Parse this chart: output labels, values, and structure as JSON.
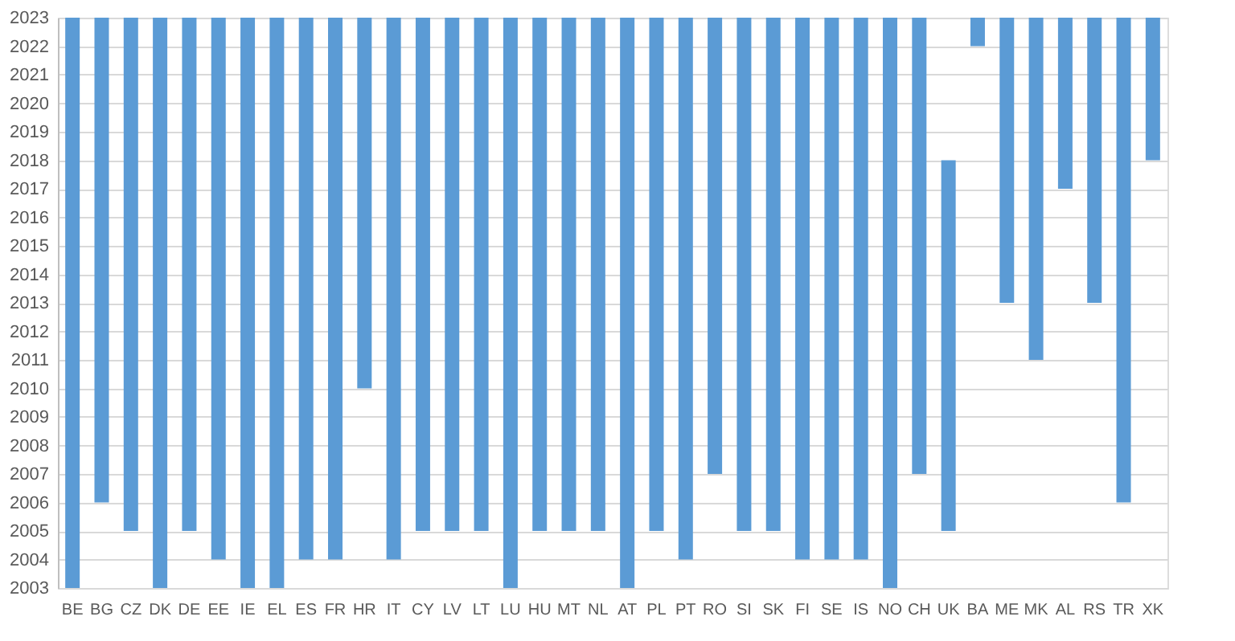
{
  "chart_data": {
    "type": "bar",
    "categories": [
      "BE",
      "BG",
      "CZ",
      "DK",
      "DE",
      "EE",
      "IE",
      "EL",
      "ES",
      "FR",
      "HR",
      "IT",
      "CY",
      "LV",
      "LT",
      "LU",
      "HU",
      "MT",
      "NL",
      "AT",
      "PL",
      "PT",
      "RO",
      "SI",
      "SK",
      "FI",
      "SE",
      "IS",
      "NO",
      "CH",
      "UK",
      "BA",
      "ME",
      "MK",
      "AL",
      "RS",
      "TR",
      "XK"
    ],
    "base": [
      2003,
      2006,
      2005,
      2003,
      2005,
      2004,
      2003,
      2003,
      2004,
      2004,
      2010,
      2004,
      2005,
      2005,
      2005,
      2003,
      2005,
      2005,
      2005,
      2003,
      2005,
      2004,
      2007,
      2005,
      2005,
      2004,
      2004,
      2004,
      2003,
      2007,
      2005,
      2022,
      2013,
      2011,
      2017,
      2013,
      2006,
      2018
    ],
    "values": [
      20,
      17,
      18,
      20,
      18,
      19,
      20,
      20,
      19,
      19,
      13,
      19,
      18,
      18,
      18,
      20,
      18,
      18,
      18,
      20,
      18,
      19,
      16,
      18,
      18,
      19,
      19,
      19,
      20,
      16,
      13,
      1,
      10,
      12,
      6,
      10,
      17,
      5
    ],
    "color": "#5b9bd5",
    "ylim": [
      2003,
      2023
    ],
    "yticks": [
      2003,
      2004,
      2005,
      2006,
      2007,
      2008,
      2009,
      2010,
      2011,
      2012,
      2013,
      2014,
      2015,
      2016,
      2017,
      2018,
      2019,
      2020,
      2021,
      2022,
      2023
    ],
    "grid": "y"
  }
}
